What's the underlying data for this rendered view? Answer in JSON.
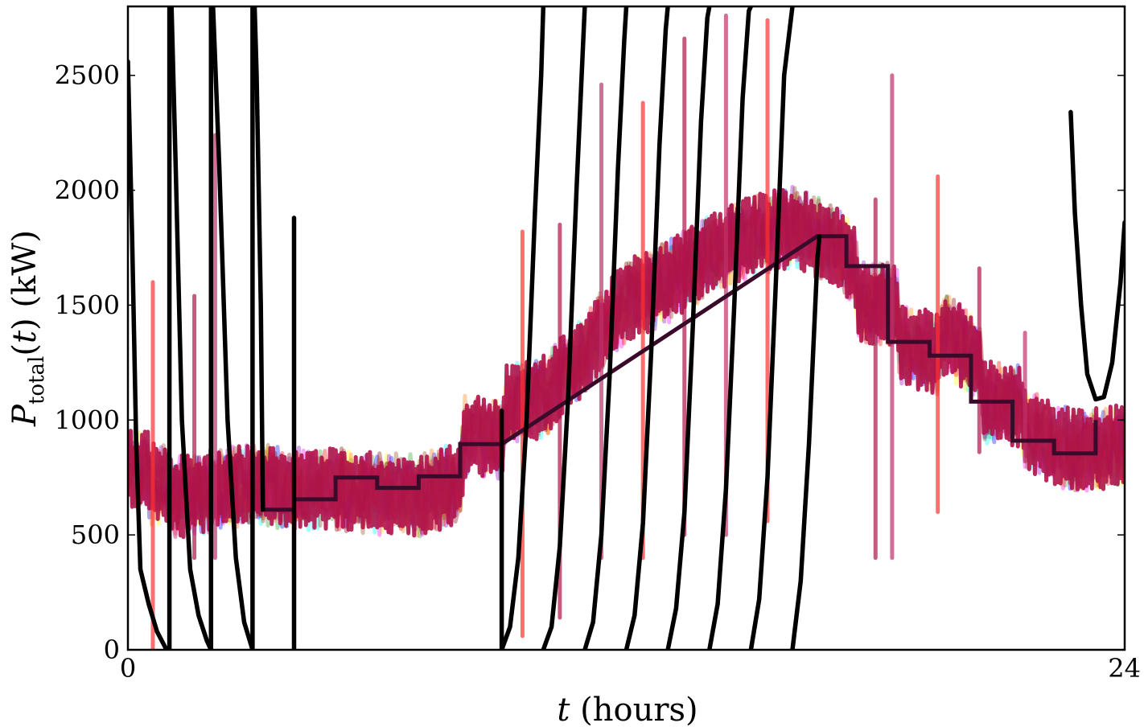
{
  "chart_data": {
    "type": "line",
    "title": "",
    "xlabel": {
      "var": "t",
      "rest": " (hours)"
    },
    "ylabel": {
      "var": "P",
      "sub": "total",
      "paren": "(",
      "targ": "t",
      "close": ")",
      "unit": " (kW)"
    },
    "xlim": [
      0,
      24
    ],
    "ylim": [
      0,
      2800
    ],
    "xticks": [
      0,
      24
    ],
    "xtick_labels": [
      "0",
      "24"
    ],
    "yticks": [
      0,
      500,
      1000,
      1500,
      2000,
      2500
    ],
    "ytick_labels": [
      "0",
      "500",
      "1000",
      "1500",
      "2000",
      "2500"
    ],
    "grid": false,
    "scenario_colors": [
      "#2ca02c",
      "#00ffff",
      "#ffff00",
      "#ff00ff",
      "#0000ff",
      "#9400d3",
      "#ff0000",
      "#ff7f0e",
      "#8b4513",
      "#800000"
    ],
    "band_color": "#b0124a",
    "band_level_kw": [
      [
        0,
        780
      ],
      [
        0.5,
        780
      ],
      [
        0.5,
        720
      ],
      [
        1.0,
        720
      ],
      [
        1.0,
        670
      ],
      [
        1.5,
        670
      ],
      [
        2.0,
        690
      ],
      [
        3.0,
        720
      ],
      [
        4.0,
        700
      ],
      [
        5.0,
        700
      ],
      [
        6.0,
        680
      ],
      [
        7.0,
        670
      ],
      [
        8.0,
        730
      ],
      [
        8.1,
        930
      ],
      [
        9.0,
        920
      ],
      [
        9.1,
        1060
      ],
      [
        10.0,
        1100
      ],
      [
        11.0,
        1290
      ],
      [
        12.0,
        1520
      ],
      [
        13.0,
        1600
      ],
      [
        14.0,
        1720
      ],
      [
        15.0,
        1800
      ],
      [
        16.0,
        1840
      ],
      [
        17.0,
        1760
      ],
      [
        17.5,
        1680
      ],
      [
        17.6,
        1520
      ],
      [
        18.0,
        1510
      ],
      [
        18.5,
        1500
      ],
      [
        18.6,
        1340
      ],
      [
        19.0,
        1310
      ],
      [
        19.5,
        1290
      ],
      [
        19.6,
        1380
      ],
      [
        20.0,
        1330
      ],
      [
        20.5,
        1260
      ],
      [
        20.6,
        1080
      ],
      [
        21.5,
        1060
      ],
      [
        21.6,
        960
      ],
      [
        22.5,
        880
      ],
      [
        23.0,
        870
      ],
      [
        23.5,
        880
      ],
      [
        24.0,
        890
      ]
    ],
    "band_halfwidth_kw": 180,
    "spikes": [
      {
        "x": 0.6,
        "y0": 0,
        "y1": 1600
      },
      {
        "x": 1.6,
        "y0": 400,
        "y1": 1540
      },
      {
        "x": 2.1,
        "y0": 400,
        "y1": 2240
      },
      {
        "x": 9.5,
        "y0": 60,
        "y1": 1820
      },
      {
        "x": 10.4,
        "y0": 140,
        "y1": 1850
      },
      {
        "x": 11.4,
        "y0": 400,
        "y1": 2460
      },
      {
        "x": 12.4,
        "y0": 400,
        "y1": 2380
      },
      {
        "x": 13.4,
        "y0": 500,
        "y1": 2660
      },
      {
        "x": 14.4,
        "y0": 500,
        "y1": 2760
      },
      {
        "x": 15.4,
        "y0": 560,
        "y1": 2740
      },
      {
        "x": 18.0,
        "y0": 400,
        "y1": 1960
      },
      {
        "x": 18.4,
        "y0": 400,
        "y1": 2500
      },
      {
        "x": 19.5,
        "y0": 600,
        "y1": 2060
      },
      {
        "x": 20.5,
        "y0": 860,
        "y1": 1660
      },
      {
        "x": 21.6,
        "y0": 820,
        "y1": 1380
      }
    ],
    "series": [
      {
        "style": "step",
        "color": "#3a0a2a",
        "points": [
          [
            3.2,
            610
          ],
          [
            4.0,
            610
          ],
          [
            4.0,
            655
          ],
          [
            5.0,
            655
          ],
          [
            5.0,
            750
          ],
          [
            6.0,
            750
          ],
          [
            6.0,
            705
          ],
          [
            7.0,
            705
          ],
          [
            7.0,
            755
          ],
          [
            8.0,
            755
          ],
          [
            8.0,
            895
          ],
          [
            9.0,
            895
          ],
          [
            16.6,
            1800
          ],
          [
            17.3,
            1800
          ],
          [
            17.3,
            1670
          ],
          [
            18.3,
            1670
          ],
          [
            18.3,
            1340
          ],
          [
            19.3,
            1340
          ],
          [
            19.3,
            1280
          ],
          [
            20.3,
            1280
          ],
          [
            20.3,
            1080
          ],
          [
            21.3,
            1080
          ],
          [
            21.3,
            910
          ],
          [
            22.3,
            910
          ],
          [
            22.3,
            855
          ],
          [
            23.3,
            855
          ],
          [
            23.3,
            1000
          ]
        ]
      },
      {
        "style": "line",
        "color": "#000000",
        "segments": [
          [
            [
              0.0,
              2560
            ],
            [
              0.1,
              1800
            ],
            [
              0.2,
              900
            ],
            [
              0.3,
              350
            ],
            [
              0.5,
              200
            ],
            [
              0.7,
              80
            ],
            [
              0.9,
              10
            ],
            [
              1.0,
              0
            ]
          ],
          [
            [
              1.0,
              0
            ],
            [
              1.0,
              2800
            ]
          ],
          [
            [
              1.05,
              2800
            ],
            [
              1.15,
              2100
            ],
            [
              1.3,
              1000
            ],
            [
              1.5,
              350
            ],
            [
              1.7,
              150
            ],
            [
              1.9,
              40
            ],
            [
              2.0,
              0
            ]
          ],
          [
            [
              2.0,
              0
            ],
            [
              2.0,
              2800
            ]
          ],
          [
            [
              2.05,
              2800
            ],
            [
              2.2,
              2100
            ],
            [
              2.4,
              1000
            ],
            [
              2.6,
              400
            ],
            [
              2.8,
              120
            ],
            [
              3.0,
              0
            ]
          ],
          [
            [
              3.0,
              0
            ],
            [
              3.0,
              2800
            ]
          ],
          [
            [
              3.05,
              2800
            ],
            [
              3.1,
              2500
            ],
            [
              3.2,
              1500
            ],
            [
              3.25,
              610
            ]
          ],
          [
            [
              4.0,
              0
            ],
            [
              4.0,
              1880
            ]
          ],
          [
            [
              9.0,
              0
            ],
            [
              9.0,
              1040
            ]
          ],
          [
            [
              9.0,
              0
            ],
            [
              9.2,
              100
            ],
            [
              9.4,
              400
            ],
            [
              9.6,
              1000
            ],
            [
              9.8,
              1900
            ],
            [
              9.95,
              2500
            ],
            [
              10.0,
              2800
            ]
          ],
          [
            [
              10.0,
              0
            ],
            [
              10.2,
              100
            ],
            [
              10.4,
              450
            ],
            [
              10.6,
              1100
            ],
            [
              10.8,
              2000
            ],
            [
              10.95,
              2600
            ],
            [
              11.0,
              2800
            ]
          ],
          [
            [
              11.0,
              0
            ],
            [
              11.2,
              120
            ],
            [
              11.4,
              500
            ],
            [
              11.6,
              1200
            ],
            [
              11.8,
              2100
            ],
            [
              11.95,
              2650
            ],
            [
              12.0,
              2800
            ]
          ],
          [
            [
              12.0,
              0
            ],
            [
              12.2,
              150
            ],
            [
              12.4,
              550
            ],
            [
              12.6,
              1300
            ],
            [
              12.8,
              2200
            ],
            [
              12.95,
              2700
            ],
            [
              13.0,
              2800
            ]
          ],
          [
            [
              13.0,
              0
            ],
            [
              13.2,
              180
            ],
            [
              13.4,
              600
            ],
            [
              13.6,
              1400
            ],
            [
              13.8,
              2300
            ],
            [
              13.95,
              2750
            ],
            [
              14.0,
              2800
            ]
          ],
          [
            [
              14.0,
              0
            ],
            [
              14.2,
              200
            ],
            [
              14.4,
              700
            ],
            [
              14.6,
              1500
            ],
            [
              14.8,
              2400
            ],
            [
              14.95,
              2780
            ],
            [
              15.0,
              2800
            ]
          ],
          [
            [
              15.0,
              0
            ],
            [
              15.2,
              220
            ],
            [
              15.4,
              750
            ],
            [
              15.6,
              1600
            ],
            [
              15.8,
              2500
            ],
            [
              16.0,
              2800
            ]
          ],
          [
            [
              16.0,
              0
            ],
            [
              16.2,
              300
            ],
            [
              16.4,
              900
            ],
            [
              16.6,
              1700
            ],
            [
              16.65,
              1800
            ]
          ],
          [
            [
              22.7,
              2340
            ],
            [
              22.8,
              1900
            ],
            [
              22.95,
              1500
            ],
            [
              23.1,
              1200
            ],
            [
              23.3,
              1090
            ],
            [
              23.5,
              1100
            ],
            [
              23.7,
              1250
            ],
            [
              23.9,
              1600
            ],
            [
              24.0,
              1860
            ]
          ]
        ]
      }
    ]
  }
}
